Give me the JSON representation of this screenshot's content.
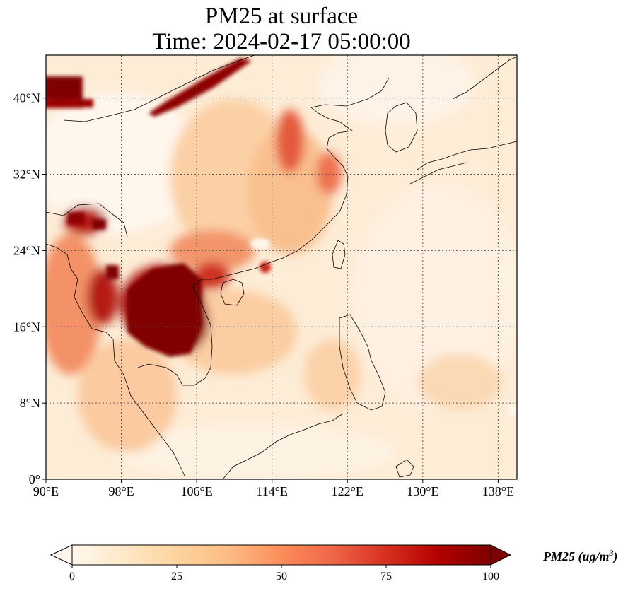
{
  "title": {
    "line1": "PM25 at surface",
    "line2": "Time: 2024-02-17 05:00:00"
  },
  "map": {
    "lon_range": [
      90,
      140
    ],
    "lat_range": [
      0,
      44.5
    ],
    "lon_ticks": [
      {
        "value": 90,
        "label": "90°E"
      },
      {
        "value": 98,
        "label": "98°E"
      },
      {
        "value": 106,
        "label": "106°E"
      },
      {
        "value": 114,
        "label": "114°E"
      },
      {
        "value": 122,
        "label": "122°E"
      },
      {
        "value": 130,
        "label": "130°E"
      },
      {
        "value": 138,
        "label": "138°E"
      }
    ],
    "lat_ticks": [
      {
        "value": 0,
        "label": "0°"
      },
      {
        "value": 8,
        "label": "8°N"
      },
      {
        "value": 16,
        "label": "16°N"
      },
      {
        "value": 24,
        "label": "24°N"
      },
      {
        "value": 32,
        "label": "32°N"
      },
      {
        "value": 40,
        "label": "40°N"
      }
    ],
    "gridlines": "dotted",
    "colormap": "OrRd"
  },
  "colorbar": {
    "label_var": "PM25",
    "label_units": "(ug/m",
    "label_exp": "3",
    "label_close": ")",
    "range": [
      0,
      100
    ],
    "ticks": [
      {
        "value": 0,
        "label": "0"
      },
      {
        "value": 25,
        "label": "25"
      },
      {
        "value": 50,
        "label": "50"
      },
      {
        "value": 75,
        "label": "75"
      },
      {
        "value": 100,
        "label": "100"
      }
    ],
    "extend": "both",
    "colors": [
      "#fff7ec",
      "#fee8c8",
      "#fdd49e",
      "#fdbb84",
      "#fc8d59",
      "#ef6548",
      "#d7301f",
      "#b30000",
      "#7f0000"
    ]
  }
}
